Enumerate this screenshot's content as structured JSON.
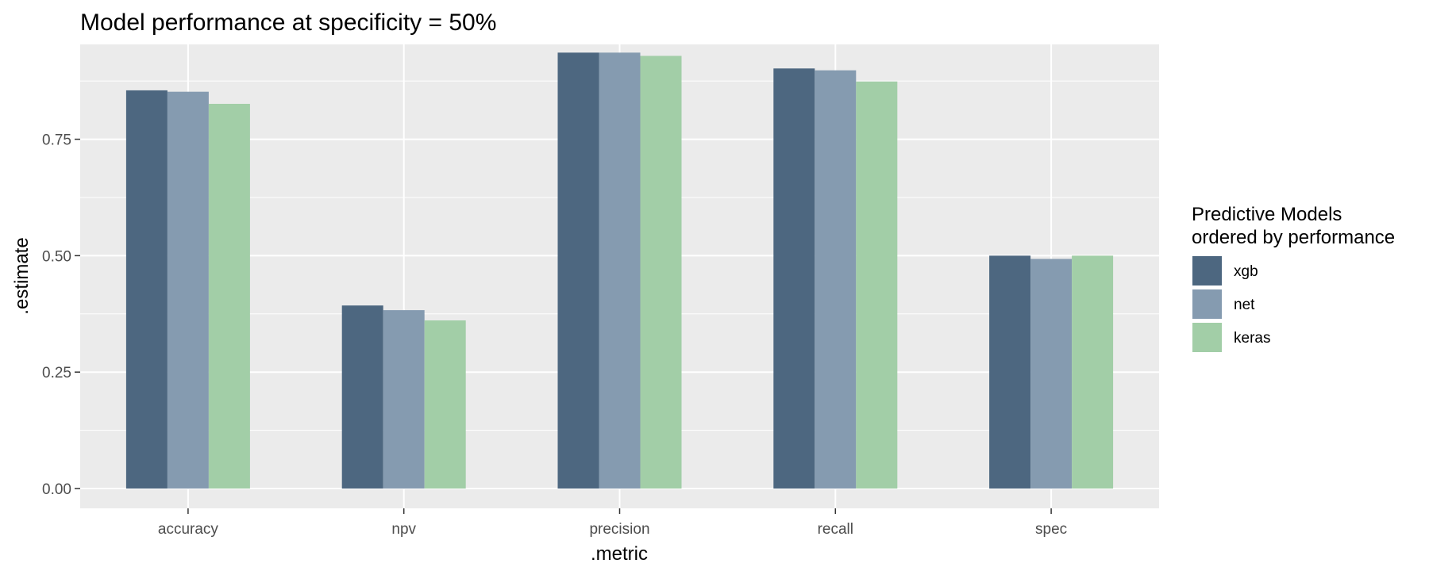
{
  "chart_data": {
    "type": "bar",
    "title": "Model performance at specificity = 50%",
    "xlabel": ".metric",
    "ylabel": ".estimate",
    "categories": [
      "accuracy",
      "npv",
      "precision",
      "recall",
      "spec"
    ],
    "series": [
      {
        "name": "xgb",
        "color": "#4d6780",
        "values": [
          0.855,
          0.393,
          0.936,
          0.902,
          0.5
        ]
      },
      {
        "name": "net",
        "color": "#859bb0",
        "values": [
          0.852,
          0.383,
          0.936,
          0.898,
          0.493
        ]
      },
      {
        "name": "keras",
        "color": "#a2cea7",
        "values": [
          0.826,
          0.361,
          0.929,
          0.874,
          0.5
        ]
      }
    ],
    "ylim": [
      0,
      0.94
    ],
    "yticks": [
      0,
      0.25,
      0.5,
      0.75
    ],
    "ytick_labels": [
      "0.00",
      "0.25",
      "0.50",
      "0.75"
    ],
    "grid": true,
    "legend": {
      "title_lines": [
        "Predictive Models",
        "ordered by performance"
      ],
      "placement": "right"
    },
    "panel_background": "#ebebeb"
  }
}
